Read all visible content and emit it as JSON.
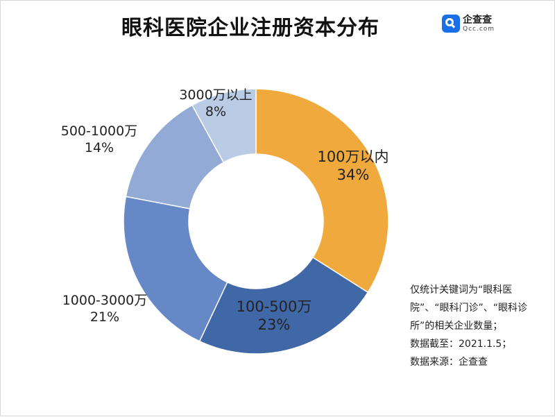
{
  "title": "眼科医院企业注册资本分布",
  "logo": {
    "name_cn": "企查查",
    "name_en": "Qcc.com"
  },
  "chart_data": {
    "type": "pie",
    "donut": true,
    "categories": [
      "100万以内",
      "100-500万",
      "1000-3000万",
      "500-1000万",
      "3000万以上"
    ],
    "values": [
      34,
      23,
      21,
      14,
      8
    ],
    "value_labels": [
      "34%",
      "23%",
      "21%",
      "14%",
      "8%"
    ],
    "colors": [
      "#EFA93C",
      "#4068A7",
      "#6688C6",
      "#92AAD5",
      "#BACBE6"
    ],
    "title": "眼科医院企业注册资本分布"
  },
  "notes": [
    "仅统计关键词为“眼科医院”、“眼科门诊”、“眼科诊所”的相关企业数量；",
    "数据截至：2021.1.5；",
    "数据来源：企查查"
  ]
}
